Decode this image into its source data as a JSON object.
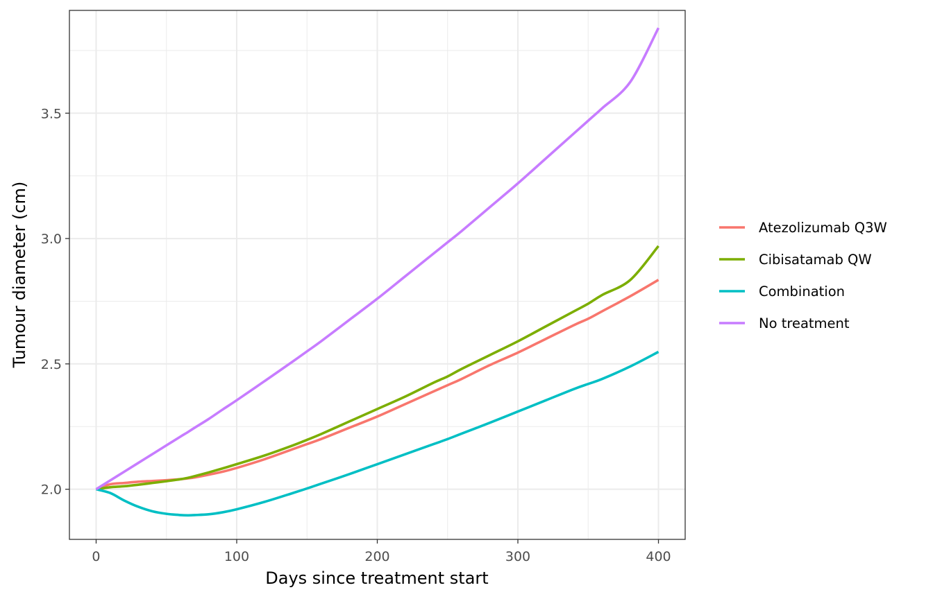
{
  "chart_data": {
    "type": "line",
    "xlabel": "Days since treatment start",
    "ylabel": "Tumour diameter (cm)",
    "xlim": [
      -19,
      419
    ],
    "ylim": [
      1.8,
      3.91
    ],
    "x_ticks": [
      0,
      100,
      200,
      300,
      400
    ],
    "x_tick_labels": [
      "0",
      "100",
      "200",
      "300",
      "400"
    ],
    "y_ticks": [
      2.0,
      2.5,
      3.0,
      3.5
    ],
    "y_tick_labels": [
      "2.0",
      "2.5",
      "3.0",
      "3.5"
    ],
    "grid": true,
    "legend_position": "right",
    "x": [
      0,
      10,
      20,
      30,
      40,
      50,
      60,
      65,
      70,
      80,
      90,
      100,
      120,
      140,
      150,
      160,
      180,
      200,
      220,
      240,
      250,
      260,
      280,
      300,
      320,
      340,
      350,
      360,
      380,
      400
    ],
    "series": [
      {
        "name": "Atezolizumab Q3W",
        "color": "#F8766D",
        "values": [
          2.0,
          2.02,
          2.025,
          2.03,
          2.033,
          2.036,
          2.04,
          2.043,
          2.047,
          2.058,
          2.07,
          2.085,
          2.12,
          2.16,
          2.18,
          2.2,
          2.245,
          2.29,
          2.34,
          2.39,
          2.415,
          2.44,
          2.495,
          2.545,
          2.6,
          2.655,
          2.68,
          2.71,
          2.77,
          2.835
        ]
      },
      {
        "name": "Cibisatamab QW",
        "color": "#7CAE00",
        "values": [
          2.0,
          2.008,
          2.012,
          2.018,
          2.025,
          2.032,
          2.04,
          2.045,
          2.052,
          2.067,
          2.083,
          2.1,
          2.135,
          2.175,
          2.197,
          2.22,
          2.27,
          2.32,
          2.37,
          2.425,
          2.45,
          2.48,
          2.535,
          2.59,
          2.65,
          2.71,
          2.74,
          2.775,
          2.835,
          2.97
        ]
      },
      {
        "name": "Combination",
        "color": "#00BFC4",
        "values": [
          2.0,
          1.985,
          1.955,
          1.93,
          1.912,
          1.902,
          1.897,
          1.896,
          1.897,
          1.9,
          1.908,
          1.92,
          1.95,
          1.985,
          2.003,
          2.022,
          2.06,
          2.1,
          2.14,
          2.18,
          2.2,
          2.222,
          2.265,
          2.31,
          2.355,
          2.4,
          2.42,
          2.44,
          2.49,
          2.548
        ]
      },
      {
        "name": "No treatment",
        "color": "#C77CFF",
        "values": [
          2.0,
          2.035,
          2.07,
          2.105,
          2.14,
          2.175,
          2.21,
          2.227,
          2.245,
          2.28,
          2.318,
          2.355,
          2.432,
          2.51,
          2.55,
          2.59,
          2.675,
          2.76,
          2.85,
          2.94,
          2.985,
          3.03,
          3.125,
          3.22,
          3.32,
          3.42,
          3.47,
          3.52,
          3.625,
          3.84
        ]
      }
    ]
  }
}
